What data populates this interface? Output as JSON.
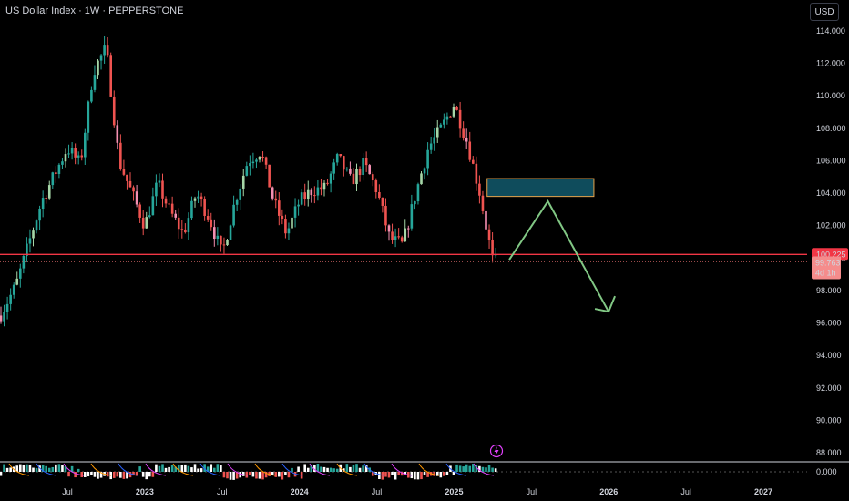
{
  "header": {
    "title": "US Dollar Index · 1W · PEPPERSTONE",
    "currency_button": "USD"
  },
  "colors": {
    "up": "#26a69a",
    "down": "#ef5350",
    "upLight": "#a5d6a7",
    "downLight": "#f48fb1",
    "hline": "#f23645",
    "zone": "#0f4c5c",
    "zoneBorder": "#e8a24a",
    "arrow": "#81c784",
    "bg": "#000000",
    "tag": "#f23645"
  },
  "price_tags": {
    "level": "100.225",
    "last": "99.763",
    "countdown": "4d 1h"
  },
  "indicator": {
    "zero_label": "0.000",
    "icon": "lightning-icon"
  },
  "chart_data": {
    "type": "candlestick",
    "title": "US Dollar Index · 1W · PEPPERSTONE",
    "y_axis_ticks": [
      "114.000",
      "112.000",
      "110.000",
      "108.000",
      "106.000",
      "104.000",
      "102.000",
      "100.000",
      "98.000",
      "96.000",
      "94.000",
      "92.000",
      "90.000",
      "88.000"
    ],
    "y_range": [
      86.9,
      114.4
    ],
    "x_axis_ticks": [
      {
        "label": "Jul",
        "date": "2022-07"
      },
      {
        "label": "2023",
        "date": "2023-01"
      },
      {
        "label": "Jul",
        "date": "2023-07"
      },
      {
        "label": "2024",
        "date": "2024-01"
      },
      {
        "label": "Jul",
        "date": "2024-07"
      },
      {
        "label": "2025",
        "date": "2025-01"
      },
      {
        "label": "Jul",
        "date": "2025-07"
      },
      {
        "label": "2026",
        "date": "2026-01"
      },
      {
        "label": "Jul",
        "date": "2026-07"
      },
      {
        "label": "2027",
        "date": "2027-01"
      }
    ],
    "series_path": [
      [
        "2022-01",
        95.3
      ],
      [
        "2022-03",
        98.3
      ],
      [
        "2022-05",
        103.5
      ],
      [
        "2022-07",
        106.8
      ],
      [
        "2022-08",
        105.8
      ],
      [
        "2022-09",
        111.5
      ],
      [
        "2022-10",
        113.0
      ],
      [
        "2022-11",
        106.0
      ],
      [
        "2022-12",
        104.0
      ],
      [
        "2023-01",
        102.0
      ],
      [
        "2023-02",
        104.6
      ],
      [
        "2023-03",
        102.8
      ],
      [
        "2023-04",
        101.5
      ],
      [
        "2023-05",
        104.0
      ],
      [
        "2023-06",
        102.5
      ],
      [
        "2023-07",
        100.2
      ],
      [
        "2023-08",
        103.5
      ],
      [
        "2023-09",
        106.0
      ],
      [
        "2023-10",
        106.6
      ],
      [
        "2023-11",
        103.5
      ],
      [
        "2023-12",
        101.5
      ],
      [
        "2024-01",
        103.5
      ],
      [
        "2024-02",
        104.2
      ],
      [
        "2024-03",
        104.3
      ],
      [
        "2024-04",
        106.2
      ],
      [
        "2024-05",
        104.7
      ],
      [
        "2024-06",
        105.8
      ],
      [
        "2024-07",
        104.2
      ],
      [
        "2024-08",
        101.2
      ],
      [
        "2024-09",
        100.8
      ],
      [
        "2024-10",
        103.9
      ],
      [
        "2024-11",
        106.8
      ],
      [
        "2024-12",
        108.0
      ],
      [
        "2025-01",
        109.5
      ],
      [
        "2025-02",
        107.2
      ],
      [
        "2025-03",
        104.0
      ],
      [
        "2025-04",
        99.8
      ],
      [
        "2025-05",
        99.8
      ]
    ],
    "levels": [
      {
        "name": "horizontal-level",
        "value": 100.225
      },
      {
        "name": "last-price",
        "value": 99.763
      }
    ],
    "zone": {
      "from_date": "2025-03",
      "to_date": "2025-11",
      "low": 103.8,
      "high": 104.9
    },
    "projection": [
      [
        "2025-05",
        99.9
      ],
      [
        "2025-08",
        103.5
      ],
      [
        "2025-12",
        96.7
      ]
    ],
    "last_price": 99.763
  }
}
